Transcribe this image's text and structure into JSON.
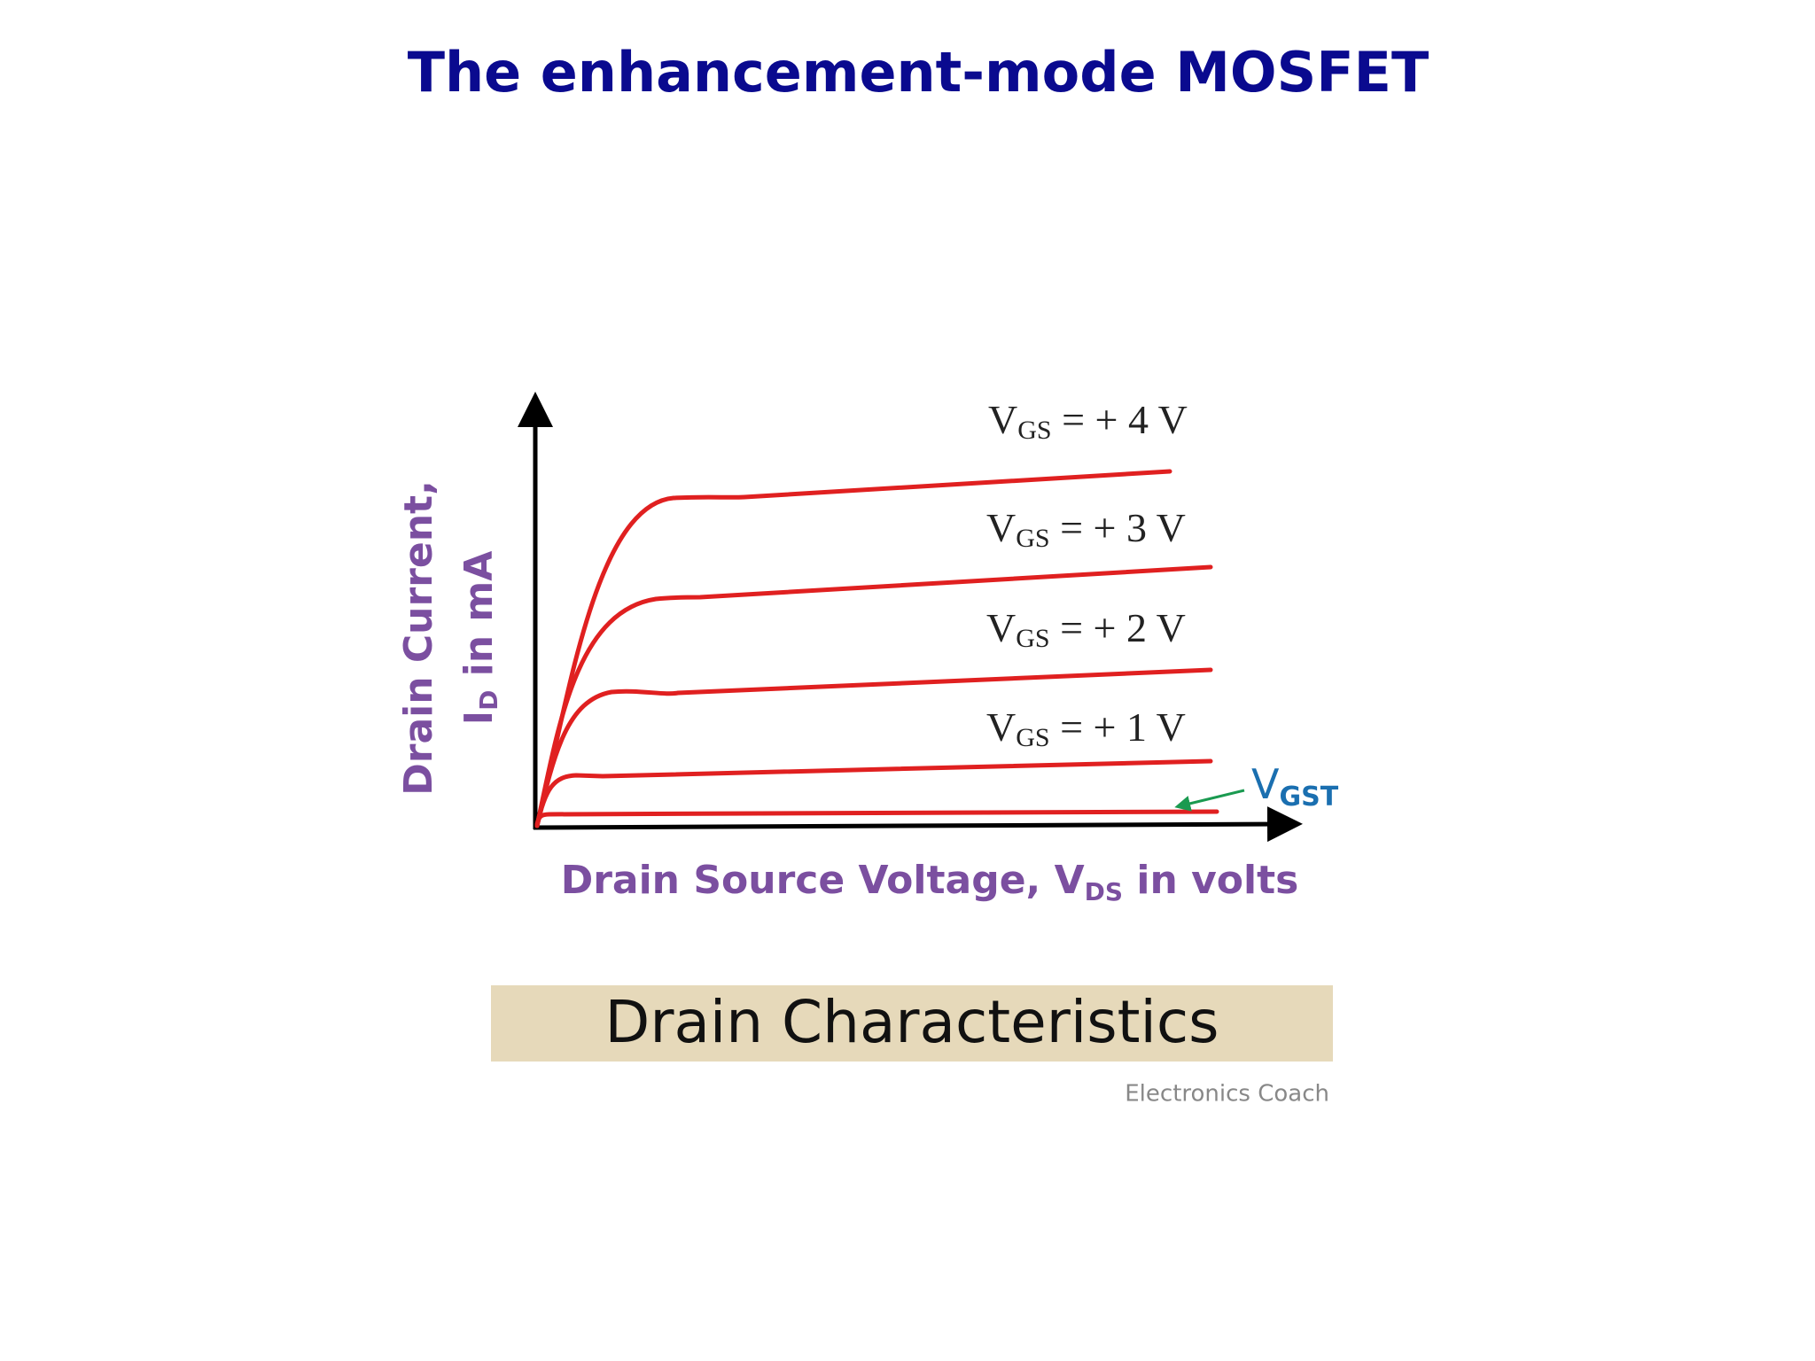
{
  "title": "The enhancement-mode MOSFET",
  "diagram": {
    "y_label": {
      "line1": "Drain Current,",
      "main": "I",
      "sub": "D",
      "rest": " in mA"
    },
    "x_label": {
      "main": "Drain Source Voltage, V",
      "sub": "DS",
      "rest": " in volts"
    },
    "curves": [
      {
        "main": "V",
        "sub": "GS",
        "rest": " = + 4 V"
      },
      {
        "main": "V",
        "sub": "GS",
        "rest": " = + 3 V"
      },
      {
        "main": "V",
        "sub": "GS",
        "rest": " = + 2 V"
      },
      {
        "main": "V",
        "sub": "GS",
        "rest": " = + 1 V"
      }
    ],
    "threshold": {
      "main": "V",
      "sub": "GST"
    },
    "caption": "Drain Characteristics",
    "credit": "Electronics Coach"
  }
}
